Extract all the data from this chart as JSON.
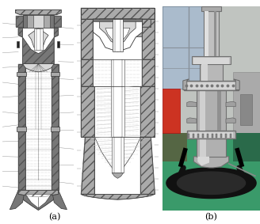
{
  "figure_width": 3.28,
  "figure_height": 2.83,
  "dpi": 100,
  "background_color": "#ffffff",
  "label_a": "(a)",
  "label_b": "(b)",
  "label_fontsize": 8,
  "gray_light": "#d8d8d8",
  "gray_mid": "#aaaaaa",
  "gray_dark": "#777777",
  "gray_wall": "#999999",
  "hatch_color": "#555555",
  "line_color": "#333333"
}
